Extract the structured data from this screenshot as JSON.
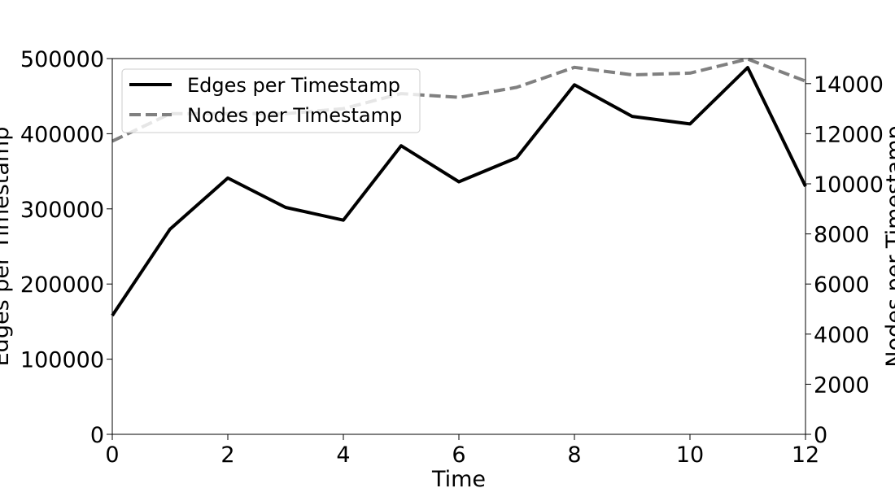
{
  "chart_data": {
    "type": "line",
    "xlabel": "Time",
    "ylabel_left": "Edges per Timestamp",
    "ylabel_right": "Nodes per Timestamp",
    "xlim": [
      0,
      12
    ],
    "ylim_left": [
      0,
      500000
    ],
    "ylim_right": [
      0,
      15000
    ],
    "x_ticks": [
      0,
      2,
      4,
      6,
      8,
      10,
      12
    ],
    "y_left_ticks": [
      0,
      100000,
      200000,
      300000,
      400000,
      500000
    ],
    "y_right_ticks": [
      0,
      2000,
      4000,
      6000,
      8000,
      10000,
      12000,
      14000
    ],
    "x": [
      0,
      1,
      2,
      3,
      4,
      5,
      6,
      7,
      8,
      9,
      10,
      11,
      12
    ],
    "series": [
      {
        "name": "Edges per Timestamp",
        "axis": "left",
        "color": "#000000",
        "dash": "solid",
        "values": [
          158000,
          273000,
          341000,
          302000,
          285000,
          384000,
          336000,
          368000,
          465000,
          423000,
          413000,
          488000,
          330000
        ]
      },
      {
        "name": "Nodes per Timestamp",
        "axis": "right",
        "color": "#808080",
        "dash": "dashed",
        "values": [
          11700,
          12800,
          12800,
          12800,
          13000,
          13600,
          13450,
          13850,
          14650,
          14350,
          14420,
          14980,
          14100
        ]
      }
    ],
    "legend": {
      "position": "top-left",
      "entries": [
        "Edges per Timestamp",
        "Nodes per Timestamp"
      ]
    },
    "grid": false
  }
}
